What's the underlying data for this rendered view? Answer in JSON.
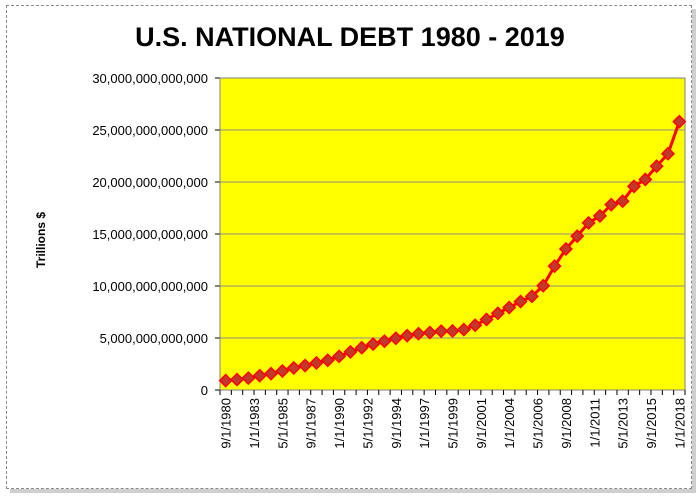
{
  "chart_data": {
    "type": "line",
    "title": "U.S. NATIONAL DEBT 1980 - 2019",
    "xlabel": "",
    "ylabel": "Trillions $",
    "ylim": [
      0,
      30000000000000
    ],
    "y_ticks": [
      0,
      5000000000000,
      10000000000000,
      15000000000000,
      20000000000000,
      25000000000000,
      30000000000000
    ],
    "y_tick_labels": [
      "0",
      "5,000,000,000,000",
      "10,000,000,000,000",
      "15,000,000,000,000",
      "20,000,000,000,000",
      "25,000,000,000,000",
      "30,000,000,000,000"
    ],
    "x_tick_labels": [
      "9/1/1980",
      "1/1/1983",
      "5/1/1985",
      "9/1/1987",
      "1/1/1990",
      "5/1/1992",
      "9/1/1994",
      "1/1/1997",
      "5/1/1999",
      "9/1/2001",
      "1/1/2004",
      "5/1/2006",
      "9/1/2008",
      "1/1/2011",
      "5/1/2013",
      "9/1/2015",
      "1/1/2018"
    ],
    "grid": true,
    "legend": "none",
    "plot_background": "#ffff00",
    "line_color": "#ff0000",
    "marker_color": "#c0392b",
    "series": [
      {
        "values": [
          907000000000,
          997900000000,
          1142000000000,
          1377200000000,
          1572300000000,
          1823100000000,
          2125300000000,
          2350300000000,
          2602300000000,
          2857400000000,
          3233300000000,
          3665300000000,
          4064600000000,
          4411500000000,
          4692800000000,
          4973900000000,
          5224800000000,
          5413100000000,
          5526200000000,
          5656300000000,
          5674200000000,
          5807500000000,
          6228200000000,
          6783200000000,
          7379100000000,
          7932700000000,
          8506900000000,
          9007700000000,
          10024700000000,
          11909800000000,
          13561600000000,
          14790300000000,
          16066200000000,
          16738200000000,
          17824100000000,
          18150600000000,
          19573400000000,
          20244900000000,
          21516100000000,
          22719400000000,
          25800000000000
        ]
      }
    ]
  }
}
